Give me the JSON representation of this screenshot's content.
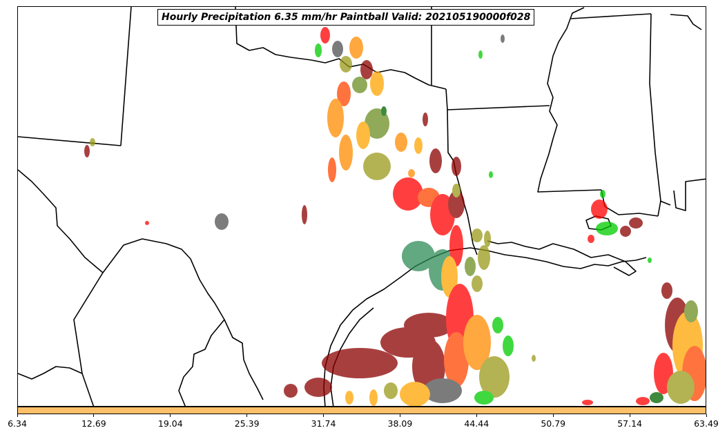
{
  "title": "Hourly Precipitation 6.35 mm/hr Paintball Valid: 202105190000f028",
  "colorbar": {
    "color": "#ffc069",
    "ticks": [
      "6.34",
      "12.69",
      "19.04",
      "25.39",
      "31.74",
      "38.09",
      "44.44",
      "50.79",
      "57.14",
      "63.49"
    ]
  },
  "map": {
    "border_color": "#000000",
    "member_colors": [
      "#8b0000",
      "#ff0000",
      "#ff4500",
      "#ff8c00",
      "#ffa500",
      "#9a9a1a",
      "#6b8e23",
      "#006400",
      "#00cc00",
      "#2e8b57",
      "#505050"
    ]
  }
}
